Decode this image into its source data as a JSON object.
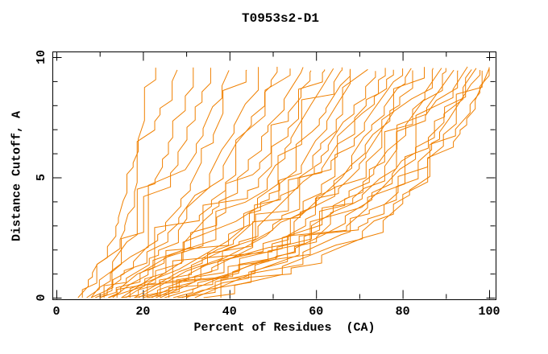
{
  "chart_data": {
    "type": "line",
    "title": "T0953s2-D1",
    "xlabel": "Percent of Residues  (CA)",
    "ylabel": "Distance Cutoff, A",
    "xlim": [
      0,
      100
    ],
    "ylim": [
      0,
      10
    ],
    "x_major_ticks": [
      0,
      20,
      40,
      60,
      80,
      100
    ],
    "x_minor_step": 10,
    "y_major_ticks": [
      0,
      5,
      10
    ],
    "y_minor_step": 1,
    "grid": false,
    "legend_position": "none",
    "line_color": "#f08000",
    "axis_color": "#000000",
    "background_color": "#ffffff",
    "values_estimated": true,
    "anchors_y": [
      0,
      2.5,
      5,
      7.5,
      9.5
    ],
    "series": [
      [
        5,
        13,
        17,
        20,
        23
      ],
      [
        6,
        15,
        19,
        23,
        28
      ],
      [
        7,
        17,
        23,
        28,
        32
      ],
      [
        8,
        19,
        26,
        31,
        36
      ],
      [
        9,
        21,
        29,
        35,
        40
      ],
      [
        10,
        23,
        32,
        38,
        44
      ],
      [
        8,
        25,
        35,
        42,
        48
      ],
      [
        11,
        27,
        37,
        45,
        51
      ],
      [
        12,
        29,
        40,
        48,
        54
      ],
      [
        13,
        31,
        42,
        50,
        57
      ],
      [
        10,
        33,
        45,
        53,
        59
      ],
      [
        14,
        34,
        47,
        55,
        62
      ],
      [
        15,
        36,
        49,
        57,
        64
      ],
      [
        16,
        38,
        51,
        59,
        66
      ],
      [
        12,
        39,
        53,
        61,
        68
      ],
      [
        17,
        41,
        55,
        63,
        70
      ],
      [
        18,
        42,
        56,
        65,
        72
      ],
      [
        19,
        44,
        58,
        67,
        74
      ],
      [
        15,
        45,
        60,
        69,
        76
      ],
      [
        20,
        47,
        61,
        70,
        78
      ],
      [
        21,
        48,
        63,
        72,
        80
      ],
      [
        22,
        50,
        65,
        74,
        82
      ],
      [
        18,
        51,
        66,
        76,
        84
      ],
      [
        23,
        53,
        68,
        77,
        85
      ],
      [
        24,
        54,
        69,
        79,
        87
      ],
      [
        25,
        56,
        71,
        81,
        89
      ],
      [
        21,
        57,
        72,
        82,
        90
      ],
      [
        26,
        58,
        74,
        84,
        92
      ],
      [
        27,
        60,
        75,
        85,
        93
      ],
      [
        28,
        61,
        77,
        87,
        95
      ],
      [
        24,
        63,
        78,
        88,
        96
      ],
      [
        30,
        64,
        80,
        89,
        97
      ],
      [
        32,
        65,
        81,
        91,
        98
      ],
      [
        29,
        67,
        83,
        92,
        99
      ],
      [
        34,
        69,
        85,
        94,
        100
      ],
      [
        38,
        71,
        87,
        95,
        100
      ]
    ]
  }
}
